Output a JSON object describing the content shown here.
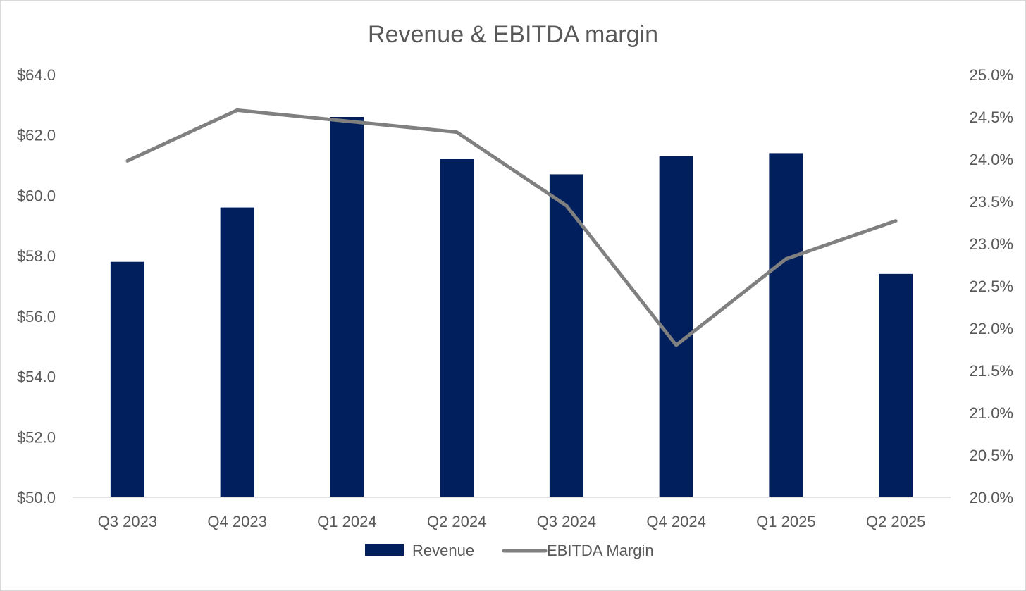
{
  "chart_data": {
    "type": "bar",
    "title": "Revenue & EBITDA margin",
    "categories": [
      "Q3 2023",
      "Q4 2023",
      "Q1 2024",
      "Q2 2024",
      "Q3 2024",
      "Q4 2024",
      "Q1 2025",
      "Q2 2025"
    ],
    "series": [
      {
        "name": "Revenue",
        "type": "bar",
        "axis": "left",
        "color": "#001F5C",
        "values": [
          57.8,
          59.6,
          62.6,
          61.2,
          60.7,
          61.3,
          61.4,
          57.4
        ]
      },
      {
        "name": "EBITDA Margin",
        "type": "line",
        "axis": "right",
        "color": "#808080",
        "values": [
          23.98,
          24.58,
          24.45,
          24.32,
          23.45,
          21.8,
          22.82,
          23.27
        ]
      }
    ],
    "y_left": {
      "lim": [
        50,
        64
      ],
      "ticks": [
        50,
        52,
        54,
        56,
        58,
        60,
        62,
        64
      ],
      "tick_labels": [
        "$50.0",
        "$52.0",
        "$54.0",
        "$56.0",
        "$58.0",
        "$60.0",
        "$62.0",
        "$64.0"
      ]
    },
    "y_right": {
      "lim": [
        20,
        25
      ],
      "ticks": [
        20,
        20.5,
        21,
        21.5,
        22,
        22.5,
        23,
        23.5,
        24,
        24.5,
        25
      ],
      "tick_labels": [
        "20.0%",
        "20.5%",
        "21.0%",
        "21.5%",
        "22.0%",
        "22.5%",
        "23.0%",
        "23.5%",
        "24.0%",
        "24.5%",
        "25.0%"
      ]
    },
    "grid": false,
    "legend_position": "bottom-center",
    "axis_color": "#d9d9d9",
    "text_color": "#595959"
  }
}
